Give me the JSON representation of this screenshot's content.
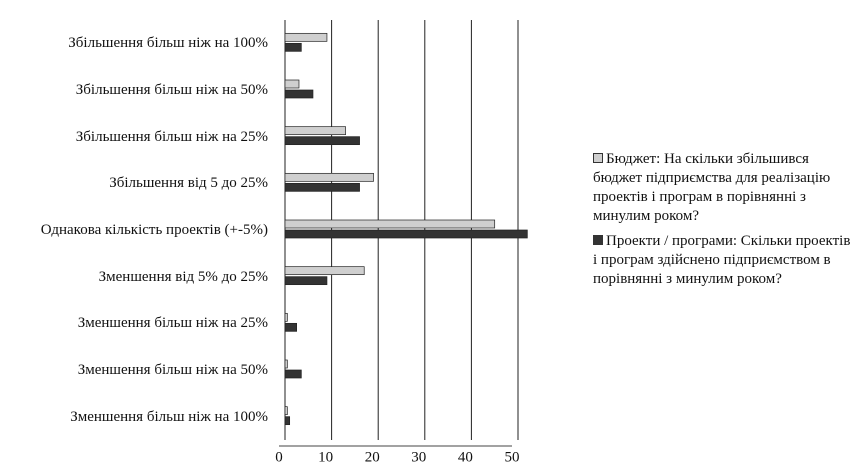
{
  "chart_data": {
    "type": "bar",
    "orientation": "horizontal",
    "categories": [
      "Збільшення більш ніж на 100%",
      "Збільшення більш ніж на 50%",
      "Збільшення більш ніж на 25%",
      "Збільшення від 5 до 25%",
      "Однакова кількість проектів (+-5%)",
      "Зменшення від 5% до 25%",
      "Зменшення більш ніж на 25%",
      "Зменшення більш ніж на 50%",
      "Зменшення більш ніж на 100%"
    ],
    "series": [
      {
        "name": "Бюджет: На скільки збільшився бюджет підприємства для реалізацію проектів і програм в порівнянні з минулим роком?",
        "color": "#cfcfcf",
        "values": [
          9,
          3,
          13,
          19,
          45,
          17,
          0.5,
          0.5,
          0.5
        ]
      },
      {
        "name": "Проекти / програми: Скільки проектів і програм здійснено підприємством в порівнянні з минулим роком?",
        "color": "#333333",
        "values": [
          3.5,
          6,
          16,
          16,
          52,
          9,
          2.5,
          3.5,
          1
        ]
      }
    ],
    "xlim": [
      0,
      50
    ],
    "xticks": [
      0,
      10,
      20,
      30,
      40,
      50
    ],
    "grid": true
  }
}
